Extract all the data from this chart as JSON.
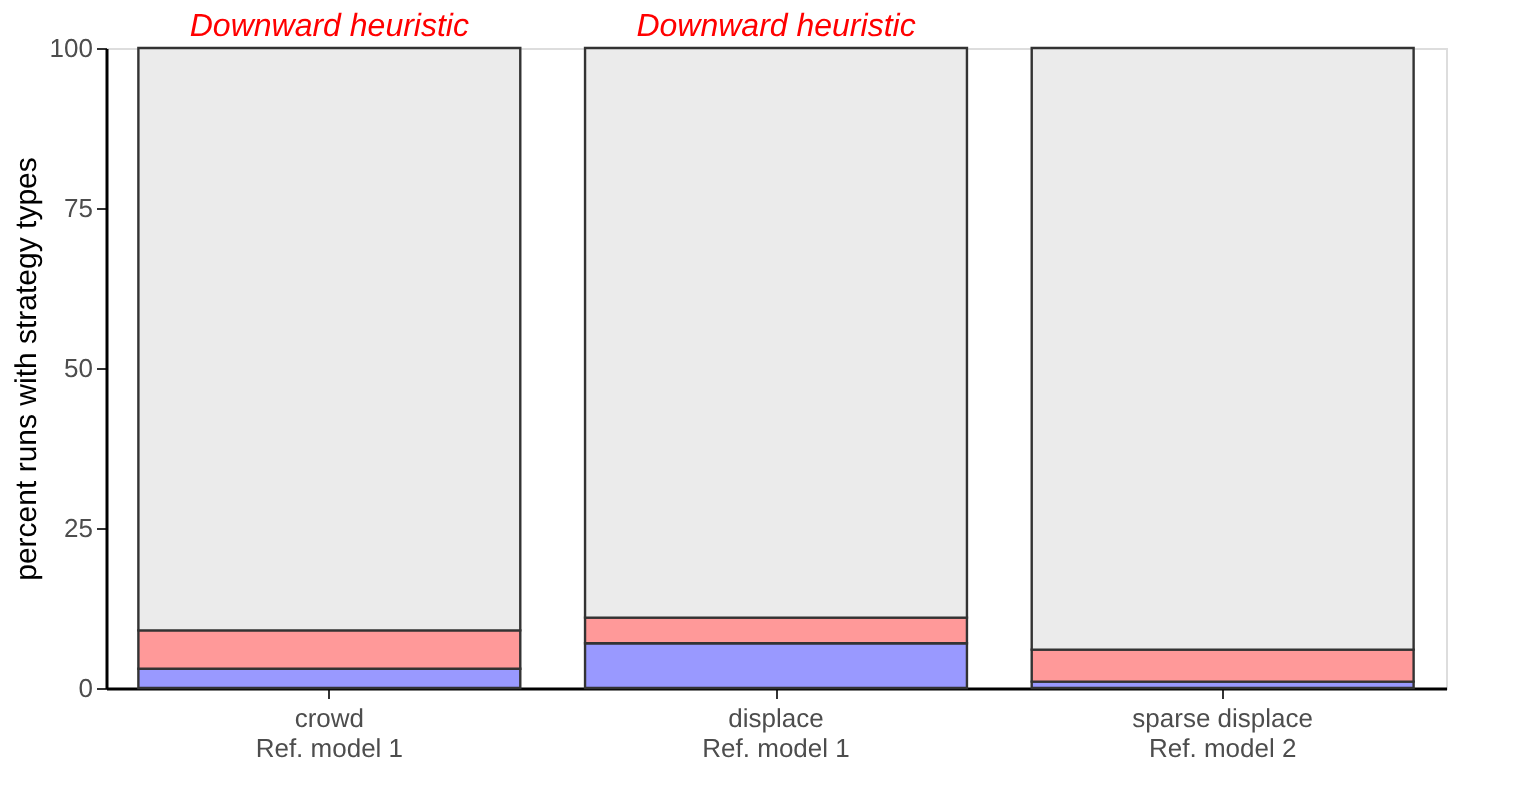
{
  "chart_data": {
    "type": "bar",
    "stacked": true,
    "ylabel": "percent runs with strategy types",
    "categories": [
      "crowd\nRef. model 1",
      "displace\nRef. model 1",
      "sparse displace\nRef. model 2"
    ],
    "series": [
      {
        "color": "#9999ff",
        "values": [
          3,
          7,
          1
        ]
      },
      {
        "color": "#ff9999",
        "values": [
          6,
          4,
          5
        ]
      },
      {
        "color": "#ebebeb",
        "values": [
          91,
          89,
          94
        ]
      }
    ],
    "ylim": [
      0,
      100
    ],
    "yticks": [
      0,
      25,
      50,
      75,
      100
    ],
    "grid": false,
    "annotations": [
      {
        "text": "Downward heuristic",
        "x": "crowd\nRef. model 1",
        "y": 100
      },
      {
        "text": "Downward heuristic",
        "x": "displace\nRef. model 1",
        "y": 100
      }
    ]
  }
}
